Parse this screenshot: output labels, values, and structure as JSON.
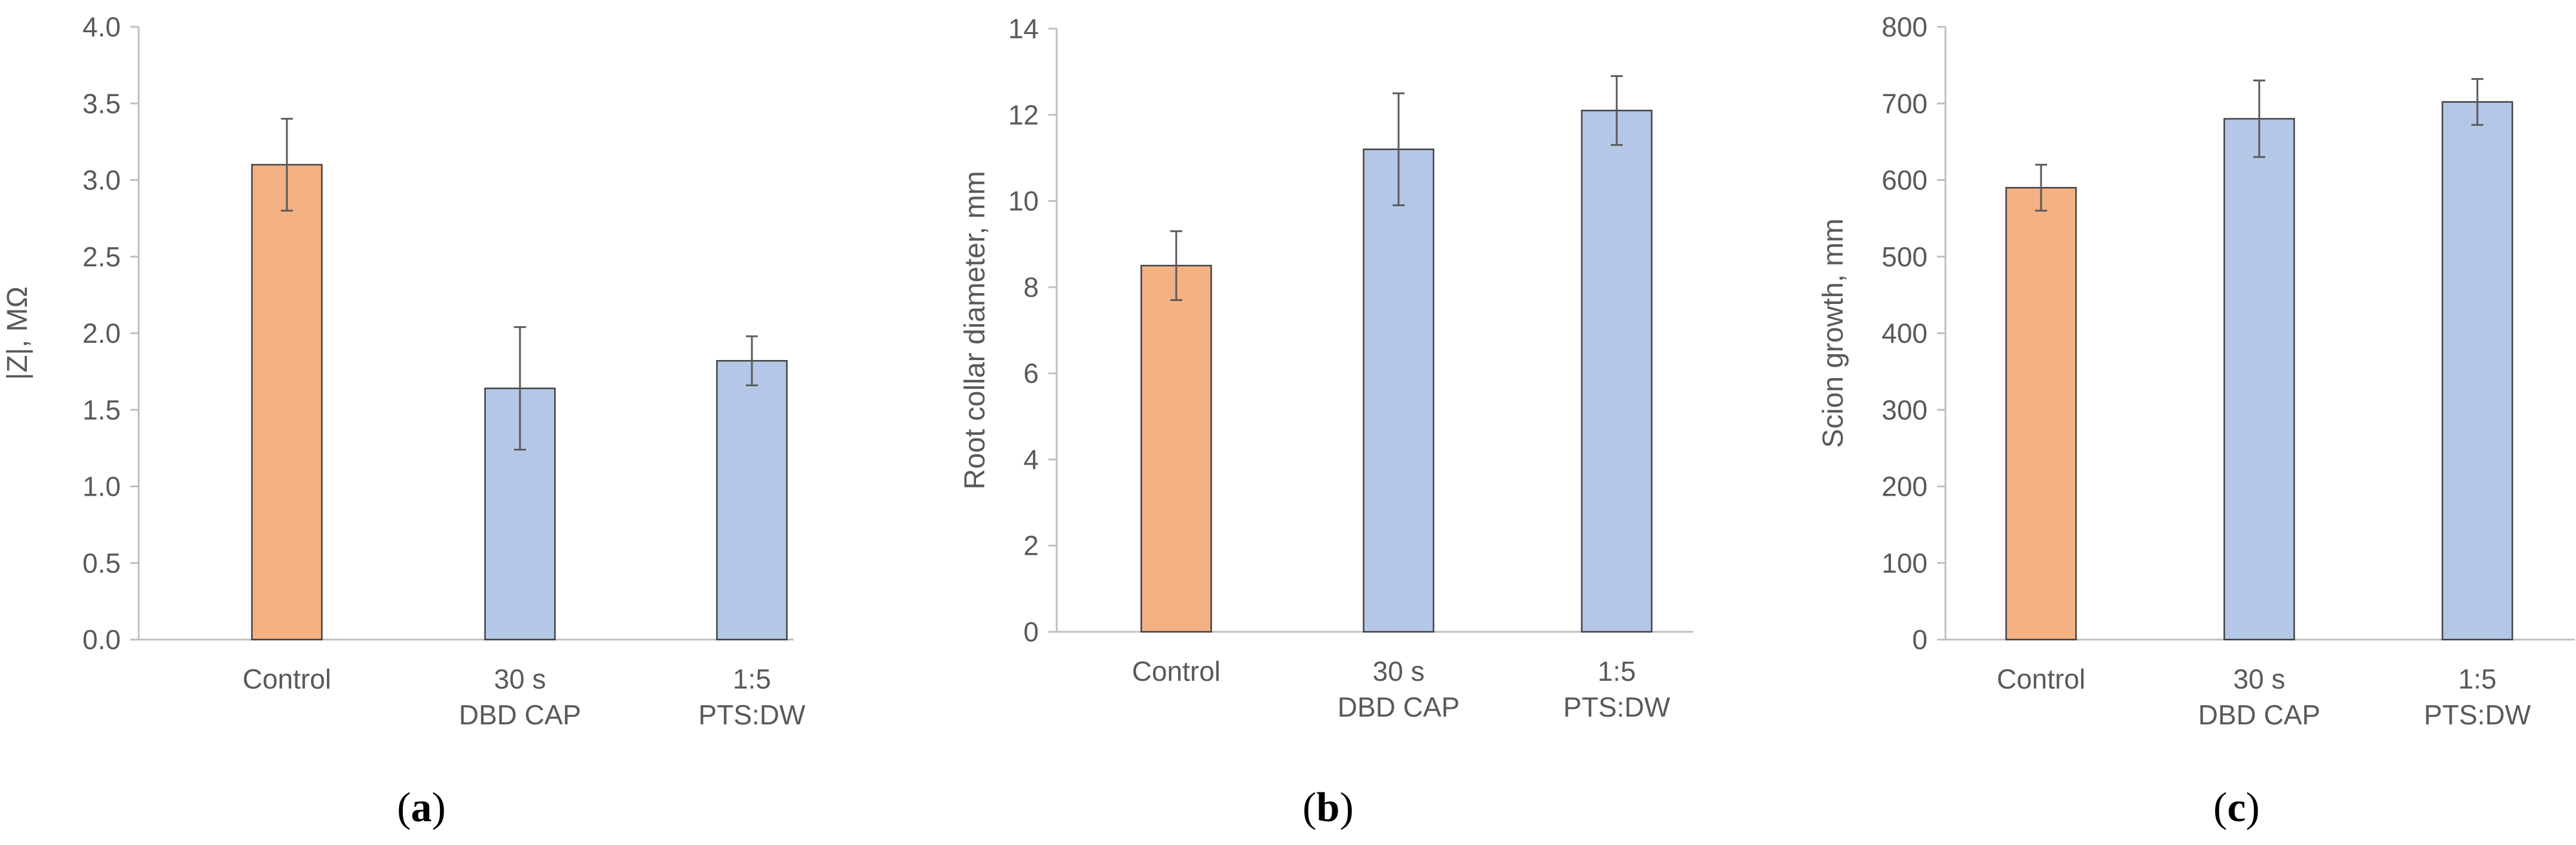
{
  "figure": {
    "colors": {
      "control": "#F4B183",
      "treatment": "#B4C7E7",
      "bar_stroke": "#404040",
      "axis": "#BFBFBF",
      "error_bar": "#595959",
      "text": "#595959"
    },
    "panel_labels": [
      {
        "open": "(",
        "letter": "a",
        "close": ")"
      },
      {
        "open": "(",
        "letter": "b",
        "close": ")"
      },
      {
        "open": "(",
        "letter": "c",
        "close": ")"
      }
    ]
  },
  "chart_data": [
    {
      "type": "bar",
      "title": "",
      "xlabel": "",
      "ylabel": "|Z|, MΩ",
      "categories": [
        [
          "Control"
        ],
        [
          "30 s",
          "DBD CAP"
        ],
        [
          "1:5",
          "PTS:DW"
        ]
      ],
      "values": [
        3.1,
        1.64,
        1.82
      ],
      "error": [
        0.3,
        0.4,
        0.16
      ],
      "ylim": [
        0,
        4
      ],
      "yticks": [
        "0.0",
        "0.5",
        "1.0",
        "1.5",
        "2.0",
        "2.5",
        "3.0",
        "3.5",
        "4.0"
      ],
      "grid": false,
      "bar_colors": [
        "control",
        "treatment",
        "treatment"
      ]
    },
    {
      "type": "bar",
      "title": "",
      "xlabel": "",
      "ylabel": "Root collar diameter, mm",
      "categories": [
        [
          "Control"
        ],
        [
          "30 s",
          "DBD CAP"
        ],
        [
          "1:5",
          "PTS:DW"
        ]
      ],
      "values": [
        8.5,
        11.2,
        12.1
      ],
      "error": [
        0.8,
        1.3,
        0.8
      ],
      "ylim": [
        0,
        14
      ],
      "yticks": [
        "0",
        "2",
        "4",
        "6",
        "8",
        "10",
        "12",
        "14"
      ],
      "grid": false,
      "bar_colors": [
        "control",
        "treatment",
        "treatment"
      ]
    },
    {
      "type": "bar",
      "title": "",
      "xlabel": "",
      "ylabel": "Scion growth, mm",
      "categories": [
        [
          "Control"
        ],
        [
          "30 s",
          "DBD CAP"
        ],
        [
          "1:5",
          "PTS:DW"
        ]
      ],
      "values": [
        590,
        680,
        702
      ],
      "error": [
        30,
        50,
        30
      ],
      "ylim": [
        0,
        800
      ],
      "yticks": [
        "0",
        "100",
        "200",
        "300",
        "400",
        "500",
        "600",
        "700",
        "800"
      ],
      "grid": false,
      "bar_colors": [
        "control",
        "treatment",
        "treatment"
      ]
    }
  ]
}
